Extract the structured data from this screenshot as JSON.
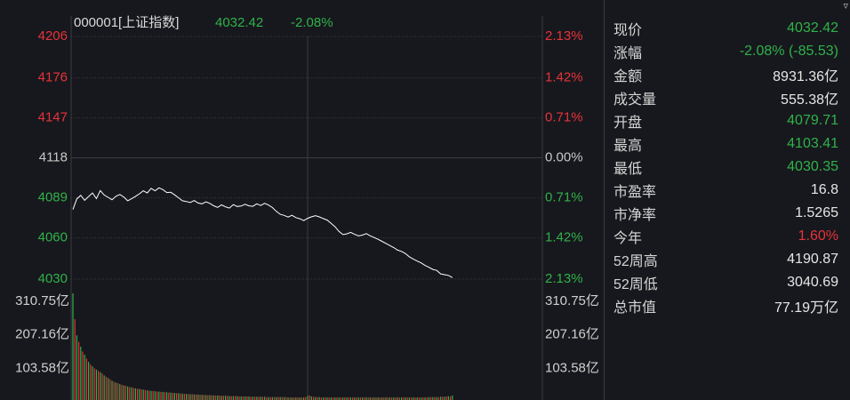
{
  "header": {
    "code_name": "000001[上证指数]",
    "price": "4032.42",
    "change_pct": "-2.08%"
  },
  "colors": {
    "up": "#e8333b",
    "down": "#2fb24a",
    "flat": "#c8c8c8",
    "background": "#17181d",
    "grid": "#3a3b40",
    "line": "#ffffff"
  },
  "stats": [
    {
      "label": "现价",
      "value": "4032.42",
      "color": "down"
    },
    {
      "label": "涨幅",
      "value": "-2.08% (-85.53)",
      "color": "down"
    },
    {
      "label": "金额",
      "value": "8931.36亿",
      "color": "flat"
    },
    {
      "label": "成交量",
      "value": "555.38亿",
      "color": "flat"
    },
    {
      "label": "开盘",
      "value": "4079.71",
      "color": "down"
    },
    {
      "label": "最高",
      "value": "4103.41",
      "color": "down"
    },
    {
      "label": "最低",
      "value": "4030.35",
      "color": "down"
    },
    {
      "label": "市盈率",
      "value": "16.8",
      "color": "flat"
    },
    {
      "label": "市净率",
      "value": "1.5265",
      "color": "flat"
    },
    {
      "label": "今年",
      "value": "1.60%",
      "color": "up"
    },
    {
      "label": "52周高",
      "value": "4190.87",
      "color": "flat"
    },
    {
      "label": "52周低",
      "value": "3040.69",
      "color": "flat"
    },
    {
      "label": "总市值",
      "value": "77.19万亿",
      "color": "flat"
    }
  ],
  "chart_data": {
    "type": "line",
    "price_axis": {
      "ticks": [
        4206,
        4176,
        4147,
        4118,
        4089,
        4060,
        4030
      ],
      "tick_labels": [
        "4206",
        "4176",
        "4147",
        "4118",
        "4089",
        "4060",
        "4030"
      ],
      "pct_labels": [
        "2.13%",
        "1.42%",
        "0.71%",
        "0.00%",
        "0.71%",
        "1.42%",
        "2.13%"
      ],
      "tick_colors": [
        "up",
        "up",
        "up",
        "flat",
        "down",
        "down",
        "down"
      ],
      "ylim": [
        4030,
        4206
      ],
      "prev_close": 4118
    },
    "volume_axis": {
      "tick_labels": [
        "310.75亿",
        "207.16亿",
        "103.58亿"
      ],
      "ticks": [
        310.75,
        207.16,
        103.58
      ],
      "ylim": [
        0,
        330
      ]
    },
    "total_minutes": 240,
    "price_series": [
      [
        0,
        4080.5
      ],
      [
        2,
        4088.2
      ],
      [
        4,
        4090.8
      ],
      [
        6,
        4087.1
      ],
      [
        8,
        4089.9
      ],
      [
        10,
        4092.5
      ],
      [
        12,
        4088.4
      ],
      [
        14,
        4094.2
      ],
      [
        16,
        4091.0
      ],
      [
        18,
        4089.3
      ],
      [
        20,
        4087.6
      ],
      [
        22,
        4090.1
      ],
      [
        24,
        4091.4
      ],
      [
        26,
        4089.6
      ],
      [
        28,
        4086.8
      ],
      [
        30,
        4088.3
      ],
      [
        32,
        4090.0
      ],
      [
        34,
        4091.9
      ],
      [
        36,
        4094.1
      ],
      [
        38,
        4092.5
      ],
      [
        40,
        4095.8
      ],
      [
        42,
        4094.0
      ],
      [
        44,
        4096.2
      ],
      [
        46,
        4094.9
      ],
      [
        48,
        4092.8
      ],
      [
        50,
        4093.0
      ],
      [
        52,
        4091.1
      ],
      [
        54,
        4089.0
      ],
      [
        56,
        4086.8
      ],
      [
        58,
        4086.3
      ],
      [
        60,
        4085.6
      ],
      [
        62,
        4087.0
      ],
      [
        64,
        4085.2
      ],
      [
        66,
        4084.6
      ],
      [
        68,
        4086.1
      ],
      [
        70,
        4084.9
      ],
      [
        72,
        4083.2
      ],
      [
        74,
        4082.0
      ],
      [
        76,
        4083.8
      ],
      [
        78,
        4082.4
      ],
      [
        80,
        4081.5
      ],
      [
        82,
        4084.0
      ],
      [
        84,
        4082.7
      ],
      [
        86,
        4083.0
      ],
      [
        88,
        4084.3
      ],
      [
        90,
        4083.1
      ],
      [
        92,
        4082.8
      ],
      [
        94,
        4084.6
      ],
      [
        96,
        4083.4
      ],
      [
        98,
        4085.0
      ],
      [
        100,
        4083.7
      ],
      [
        102,
        4081.9
      ],
      [
        104,
        4079.1
      ],
      [
        106,
        4077.0
      ],
      [
        108,
        4076.2
      ],
      [
        110,
        4075.0
      ],
      [
        112,
        4076.3
      ],
      [
        114,
        4074.6
      ],
      [
        116,
        4073.8
      ],
      [
        118,
        4072.4
      ],
      [
        120,
        4074.1
      ],
      [
        122,
        4075.2
      ],
      [
        124,
        4076.0
      ],
      [
        126,
        4075.1
      ],
      [
        128,
        4073.9
      ],
      [
        130,
        4072.8
      ],
      [
        132,
        4070.4
      ],
      [
        134,
        4068.0
      ],
      [
        136,
        4064.6
      ],
      [
        138,
        4062.3
      ],
      [
        140,
        4062.8
      ],
      [
        142,
        4063.9
      ],
      [
        144,
        4062.5
      ],
      [
        146,
        4061.3
      ],
      [
        148,
        4061.9
      ],
      [
        150,
        4063.0
      ],
      [
        152,
        4061.4
      ],
      [
        154,
        4060.2
      ],
      [
        156,
        4058.9
      ],
      [
        158,
        4057.4
      ],
      [
        160,
        4055.9
      ],
      [
        162,
        4054.4
      ],
      [
        164,
        4052.9
      ],
      [
        166,
        4051.0
      ],
      [
        168,
        4050.1
      ],
      [
        170,
        4048.5
      ],
      [
        172,
        4046.2
      ],
      [
        174,
        4044.6
      ],
      [
        176,
        4043.1
      ],
      [
        178,
        4041.8
      ],
      [
        180,
        4039.9
      ],
      [
        182,
        4038.6
      ],
      [
        184,
        4037.0
      ],
      [
        186,
        4036.3
      ],
      [
        188,
        4033.8
      ],
      [
        190,
        4033.2
      ],
      [
        192,
        4032.7
      ],
      [
        194,
        4031.1
      ]
    ],
    "volume_series": [
      [
        0,
        330,
        "down"
      ],
      [
        1,
        250,
        "up"
      ],
      [
        2,
        200,
        "down"
      ],
      [
        3,
        180,
        "up"
      ],
      [
        4,
        165,
        "down"
      ],
      [
        5,
        150,
        "up"
      ],
      [
        6,
        140,
        "down"
      ],
      [
        7,
        128,
        "up"
      ],
      [
        8,
        118,
        "down"
      ],
      [
        9,
        110,
        "up"
      ],
      [
        10,
        104,
        "down"
      ],
      [
        11,
        98,
        "up"
      ],
      [
        12,
        94,
        "down"
      ],
      [
        13,
        90,
        "up"
      ],
      [
        14,
        86,
        "down"
      ],
      [
        15,
        82,
        "up"
      ],
      [
        16,
        76,
        "down"
      ],
      [
        17,
        72,
        "up"
      ],
      [
        18,
        68,
        "down"
      ],
      [
        19,
        64,
        "up"
      ],
      [
        20,
        60,
        "down"
      ],
      [
        21,
        56,
        "up"
      ],
      [
        22,
        54,
        "down"
      ],
      [
        23,
        52,
        "up"
      ],
      [
        24,
        49,
        "down"
      ],
      [
        25,
        47,
        "up"
      ],
      [
        26,
        45,
        "down"
      ],
      [
        27,
        44,
        "up"
      ],
      [
        28,
        42,
        "down"
      ],
      [
        29,
        40,
        "up"
      ],
      [
        30,
        39,
        "down"
      ],
      [
        31,
        37,
        "up"
      ],
      [
        32,
        36,
        "down"
      ],
      [
        33,
        35,
        "up"
      ],
      [
        34,
        34,
        "down"
      ],
      [
        35,
        33,
        "up"
      ],
      [
        36,
        32,
        "down"
      ],
      [
        37,
        31,
        "up"
      ],
      [
        38,
        30,
        "down"
      ],
      [
        39,
        29,
        "up"
      ],
      [
        40,
        28,
        "down"
      ],
      [
        41,
        28,
        "up"
      ],
      [
        42,
        27,
        "down"
      ],
      [
        43,
        26,
        "up"
      ],
      [
        44,
        26,
        "down"
      ],
      [
        45,
        25,
        "up"
      ],
      [
        46,
        25,
        "down"
      ],
      [
        47,
        24,
        "up"
      ],
      [
        48,
        24,
        "down"
      ],
      [
        49,
        23,
        "up"
      ],
      [
        50,
        23,
        "down"
      ],
      [
        51,
        22,
        "up"
      ],
      [
        52,
        22,
        "down"
      ],
      [
        53,
        21,
        "up"
      ],
      [
        54,
        21,
        "down"
      ],
      [
        55,
        20,
        "up"
      ],
      [
        56,
        20,
        "down"
      ],
      [
        57,
        19,
        "up"
      ],
      [
        58,
        19,
        "down"
      ],
      [
        59,
        18,
        "up"
      ],
      [
        60,
        18,
        "down"
      ],
      [
        61,
        18,
        "up"
      ],
      [
        62,
        17,
        "down"
      ],
      [
        63,
        17,
        "up"
      ],
      [
        64,
        17,
        "down"
      ],
      [
        65,
        16,
        "up"
      ],
      [
        66,
        16,
        "down"
      ],
      [
        67,
        16,
        "up"
      ],
      [
        68,
        15,
        "down"
      ],
      [
        69,
        15,
        "up"
      ],
      [
        70,
        15,
        "down"
      ],
      [
        71,
        15,
        "up"
      ],
      [
        72,
        14,
        "down"
      ],
      [
        73,
        14,
        "up"
      ],
      [
        74,
        14,
        "down"
      ],
      [
        75,
        14,
        "up"
      ],
      [
        76,
        13,
        "down"
      ],
      [
        77,
        13,
        "up"
      ],
      [
        78,
        13,
        "down"
      ],
      [
        79,
        13,
        "up"
      ],
      [
        80,
        12,
        "down"
      ],
      [
        81,
        12,
        "up"
      ],
      [
        82,
        12,
        "down"
      ],
      [
        83,
        12,
        "up"
      ],
      [
        84,
        12,
        "down"
      ],
      [
        85,
        11,
        "up"
      ],
      [
        86,
        11,
        "down"
      ],
      [
        87,
        11,
        "up"
      ],
      [
        88,
        11,
        "down"
      ],
      [
        89,
        11,
        "up"
      ],
      [
        90,
        11,
        "down"
      ],
      [
        91,
        10,
        "up"
      ],
      [
        92,
        10,
        "down"
      ],
      [
        93,
        10,
        "up"
      ],
      [
        94,
        10,
        "down"
      ],
      [
        95,
        10,
        "up"
      ],
      [
        96,
        10,
        "down"
      ],
      [
        97,
        10,
        "up"
      ],
      [
        98,
        10,
        "down"
      ],
      [
        99,
        9,
        "up"
      ],
      [
        100,
        9,
        "down"
      ],
      [
        101,
        9,
        "up"
      ],
      [
        102,
        9,
        "down"
      ],
      [
        103,
        9,
        "up"
      ],
      [
        104,
        9,
        "down"
      ],
      [
        105,
        9,
        "up"
      ],
      [
        106,
        9,
        "down"
      ],
      [
        107,
        9,
        "up"
      ],
      [
        108,
        9,
        "down"
      ],
      [
        109,
        9,
        "up"
      ],
      [
        110,
        8,
        "down"
      ],
      [
        111,
        8,
        "up"
      ],
      [
        112,
        8,
        "down"
      ],
      [
        113,
        8,
        "up"
      ],
      [
        114,
        8,
        "down"
      ],
      [
        115,
        8,
        "up"
      ],
      [
        116,
        8,
        "down"
      ],
      [
        117,
        8,
        "up"
      ],
      [
        118,
        8,
        "down"
      ],
      [
        119,
        9,
        "up"
      ],
      [
        120,
        13,
        "down"
      ],
      [
        121,
        14,
        "up"
      ],
      [
        122,
        11,
        "down"
      ],
      [
        123,
        10,
        "up"
      ],
      [
        124,
        9,
        "down"
      ],
      [
        125,
        9,
        "up"
      ],
      [
        126,
        9,
        "down"
      ],
      [
        127,
        8,
        "up"
      ],
      [
        128,
        8,
        "down"
      ],
      [
        129,
        8,
        "up"
      ],
      [
        130,
        8,
        "down"
      ],
      [
        131,
        8,
        "up"
      ],
      [
        132,
        8,
        "down"
      ],
      [
        133,
        8,
        "up"
      ],
      [
        134,
        8,
        "down"
      ],
      [
        135,
        8,
        "up"
      ],
      [
        136,
        8,
        "down"
      ],
      [
        137,
        8,
        "up"
      ],
      [
        138,
        8,
        "down"
      ],
      [
        139,
        8,
        "up"
      ],
      [
        140,
        8,
        "down"
      ],
      [
        141,
        8,
        "up"
      ],
      [
        142,
        8,
        "down"
      ],
      [
        143,
        8,
        "up"
      ],
      [
        144,
        8,
        "down"
      ],
      [
        145,
        8,
        "up"
      ],
      [
        146,
        8,
        "down"
      ],
      [
        147,
        8,
        "up"
      ],
      [
        148,
        8,
        "down"
      ],
      [
        149,
        8,
        "up"
      ],
      [
        150,
        8,
        "down"
      ],
      [
        151,
        8,
        "up"
      ],
      [
        152,
        8,
        "down"
      ],
      [
        153,
        8,
        "up"
      ],
      [
        154,
        8,
        "down"
      ],
      [
        155,
        8,
        "up"
      ],
      [
        156,
        8,
        "down"
      ],
      [
        157,
        8,
        "up"
      ],
      [
        158,
        8,
        "down"
      ],
      [
        159,
        8,
        "up"
      ],
      [
        160,
        8,
        "down"
      ],
      [
        161,
        8,
        "up"
      ],
      [
        162,
        8,
        "down"
      ],
      [
        163,
        8,
        "up"
      ],
      [
        164,
        8,
        "down"
      ],
      [
        165,
        8,
        "up"
      ],
      [
        166,
        8,
        "down"
      ],
      [
        167,
        8,
        "up"
      ],
      [
        168,
        8,
        "down"
      ],
      [
        169,
        8,
        "up"
      ],
      [
        170,
        8,
        "down"
      ],
      [
        171,
        8,
        "up"
      ],
      [
        172,
        8,
        "down"
      ],
      [
        173,
        8,
        "up"
      ],
      [
        174,
        8,
        "down"
      ],
      [
        175,
        8,
        "up"
      ],
      [
        176,
        8,
        "down"
      ],
      [
        177,
        8,
        "up"
      ],
      [
        178,
        8,
        "down"
      ],
      [
        179,
        8,
        "up"
      ],
      [
        180,
        8,
        "down"
      ],
      [
        181,
        8,
        "up"
      ],
      [
        182,
        9,
        "down"
      ],
      [
        183,
        9,
        "up"
      ],
      [
        184,
        9,
        "down"
      ],
      [
        185,
        9,
        "up"
      ],
      [
        186,
        9,
        "down"
      ],
      [
        187,
        9,
        "up"
      ],
      [
        188,
        10,
        "down"
      ],
      [
        189,
        10,
        "up"
      ],
      [
        190,
        10,
        "down"
      ],
      [
        191,
        11,
        "up"
      ],
      [
        192,
        12,
        "down"
      ],
      [
        193,
        11,
        "up"
      ],
      [
        194,
        14,
        "down"
      ]
    ]
  }
}
